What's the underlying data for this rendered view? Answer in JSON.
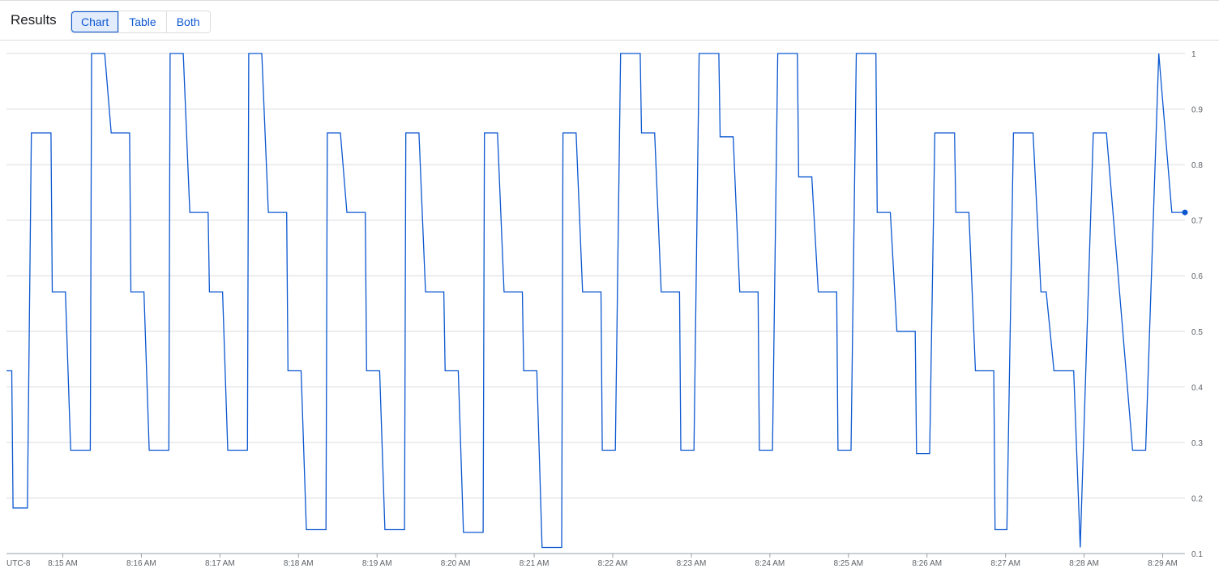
{
  "header": {
    "title": "Results",
    "view_options": [
      {
        "label": "Chart",
        "active": true
      },
      {
        "label": "Table",
        "active": false
      },
      {
        "label": "Both",
        "active": false
      }
    ]
  },
  "colors": {
    "series": "#0b57d0",
    "grid": "#dadce0",
    "axis_text": "#5f6368"
  },
  "chart_data": {
    "type": "line",
    "timezone_label": "UTC-8",
    "xlim": [
      "8:14:17",
      "8:29:17"
    ],
    "ylim": [
      0.1,
      1
    ],
    "x_ticks": [
      "8:15 AM",
      "8:16 AM",
      "8:17 AM",
      "8:18 AM",
      "8:19 AM",
      "8:20 AM",
      "8:21 AM",
      "8:22 AM",
      "8:23 AM",
      "8:24 AM",
      "8:25 AM",
      "8:26 AM",
      "8:27 AM",
      "8:28 AM",
      "8:29 AM"
    ],
    "y_ticks": [
      "0.1",
      "0.2",
      "0.3",
      "0.4",
      "0.5",
      "0.6",
      "0.7",
      "0.8",
      "0.9",
      "1"
    ],
    "y_axis_side": "right",
    "grid": true,
    "last_point_marker": true,
    "series": [
      {
        "points": [
          [
            "8:14:17",
            0.429
          ],
          [
            "8:14:21",
            0.429
          ],
          [
            "8:14:22",
            0.182
          ],
          [
            "8:14:33",
            0.182
          ],
          [
            "8:14:36",
            0.857
          ],
          [
            "8:14:51",
            0.857
          ],
          [
            "8:14:52",
            0.571
          ],
          [
            "8:15:02",
            0.571
          ],
          [
            "8:15:06",
            0.286
          ],
          [
            "8:15:21",
            0.286
          ],
          [
            "8:15:22",
            1
          ],
          [
            "8:15:32",
            1
          ],
          [
            "8:15:37",
            0.857
          ],
          [
            "8:15:51",
            0.857
          ],
          [
            "8:15:52",
            0.571
          ],
          [
            "8:16:02",
            0.571
          ],
          [
            "8:16:06",
            0.286
          ],
          [
            "8:16:21",
            0.286
          ],
          [
            "8:16:22",
            1
          ],
          [
            "8:16:32",
            1
          ],
          [
            "8:16:37",
            0.714
          ],
          [
            "8:16:51",
            0.714
          ],
          [
            "8:16:52",
            0.571
          ],
          [
            "8:17:02",
            0.571
          ],
          [
            "8:17:06",
            0.286
          ],
          [
            "8:17:21",
            0.286
          ],
          [
            "8:17:22",
            1
          ],
          [
            "8:17:32",
            1
          ],
          [
            "8:17:37",
            0.714
          ],
          [
            "8:17:51",
            0.714
          ],
          [
            "8:17:52",
            0.429
          ],
          [
            "8:18:02",
            0.429
          ],
          [
            "8:18:06",
            0.143
          ],
          [
            "8:18:21",
            0.143
          ],
          [
            "8:18:22",
            0.857
          ],
          [
            "8:18:32",
            0.857
          ],
          [
            "8:18:37",
            0.714
          ],
          [
            "8:18:51",
            0.714
          ],
          [
            "8:18:52",
            0.429
          ],
          [
            "8:19:02",
            0.429
          ],
          [
            "8:19:06",
            0.143
          ],
          [
            "8:19:21",
            0.143
          ],
          [
            "8:19:22",
            0.857
          ],
          [
            "8:19:32",
            0.857
          ],
          [
            "8:19:37",
            0.571
          ],
          [
            "8:19:51",
            0.571
          ],
          [
            "8:19:52",
            0.429
          ],
          [
            "8:20:02",
            0.429
          ],
          [
            "8:20:06",
            0.138
          ],
          [
            "8:20:21",
            0.138
          ],
          [
            "8:20:22",
            0.857
          ],
          [
            "8:20:32",
            0.857
          ],
          [
            "8:20:37",
            0.571
          ],
          [
            "8:20:51",
            0.571
          ],
          [
            "8:20:52",
            0.429
          ],
          [
            "8:21:02",
            0.429
          ],
          [
            "8:21:06",
            0.111
          ],
          [
            "8:21:21",
            0.111
          ],
          [
            "8:21:22",
            0.857
          ],
          [
            "8:21:32",
            0.857
          ],
          [
            "8:21:37",
            0.571
          ],
          [
            "8:21:51",
            0.571
          ],
          [
            "8:21:52",
            0.286
          ],
          [
            "8:22:02",
            0.286
          ],
          [
            "8:22:06",
            1
          ],
          [
            "8:22:21",
            1
          ],
          [
            "8:22:22",
            0.857
          ],
          [
            "8:22:32",
            0.857
          ],
          [
            "8:22:37",
            0.571
          ],
          [
            "8:22:51",
            0.571
          ],
          [
            "8:22:52",
            0.286
          ],
          [
            "8:23:02",
            0.286
          ],
          [
            "8:23:06",
            1
          ],
          [
            "8:23:21",
            1
          ],
          [
            "8:23:22",
            0.85
          ],
          [
            "8:23:32",
            0.85
          ],
          [
            "8:23:37",
            0.571
          ],
          [
            "8:23:51",
            0.571
          ],
          [
            "8:23:52",
            0.286
          ],
          [
            "8:24:02",
            0.286
          ],
          [
            "8:24:06",
            1
          ],
          [
            "8:24:21",
            1
          ],
          [
            "8:24:22",
            0.778
          ],
          [
            "8:24:32",
            0.778
          ],
          [
            "8:24:37",
            0.571
          ],
          [
            "8:24:51",
            0.571
          ],
          [
            "8:24:52",
            0.286
          ],
          [
            "8:25:02",
            0.286
          ],
          [
            "8:25:06",
            1
          ],
          [
            "8:25:21",
            1
          ],
          [
            "8:25:22",
            0.714
          ],
          [
            "8:25:32",
            0.714
          ],
          [
            "8:25:37",
            0.5
          ],
          [
            "8:25:51",
            0.5
          ],
          [
            "8:25:52",
            0.28
          ],
          [
            "8:26:02",
            0.28
          ],
          [
            "8:26:06",
            0.857
          ],
          [
            "8:26:21",
            0.857
          ],
          [
            "8:26:22",
            0.714
          ],
          [
            "8:26:32",
            0.714
          ],
          [
            "8:26:37",
            0.429
          ],
          [
            "8:26:51",
            0.429
          ],
          [
            "8:26:52",
            0.143
          ],
          [
            "8:27:01",
            0.143
          ],
          [
            "8:27:06",
            0.857
          ],
          [
            "8:27:21",
            0.857
          ],
          [
            "8:27:27",
            0.571
          ],
          [
            "8:27:31",
            0.571
          ],
          [
            "8:27:37",
            0.429
          ],
          [
            "8:27:52",
            0.429
          ],
          [
            "8:27:57",
            0.111
          ],
          [
            "8:28:07",
            0.857
          ],
          [
            "8:28:17",
            0.857
          ],
          [
            "8:28:37",
            0.286
          ],
          [
            "8:28:47",
            0.286
          ],
          [
            "8:28:57",
            1
          ],
          [
            "8:29:07",
            0.714
          ],
          [
            "8:29:17",
            0.714
          ]
        ]
      }
    ]
  }
}
